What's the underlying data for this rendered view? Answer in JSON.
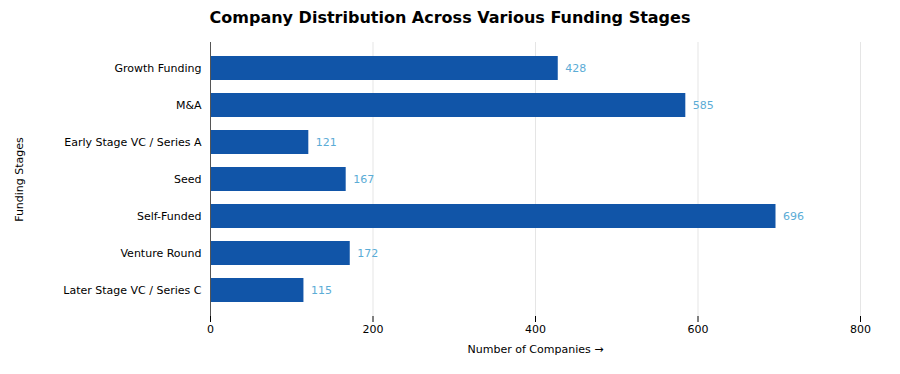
{
  "chart_data": {
    "type": "bar",
    "orientation": "horizontal",
    "title": "Company Distribution Across Various Funding Stages",
    "xlabel": "Number of Companies",
    "ylabel": "Funding Stages",
    "categories": [
      "Later Stage VC / Series C",
      "Venture Round",
      "Self-Funded",
      "Seed",
      "Early Stage VC / Series A",
      "M&A",
      "Growth Funding"
    ],
    "values": [
      115,
      172,
      696,
      167,
      121,
      585,
      428
    ],
    "color": "#1155a8",
    "xlim": [
      0,
      800
    ],
    "xticks": [
      0,
      200,
      400,
      600,
      800
    ],
    "grid": true,
    "data_labels": true
  }
}
